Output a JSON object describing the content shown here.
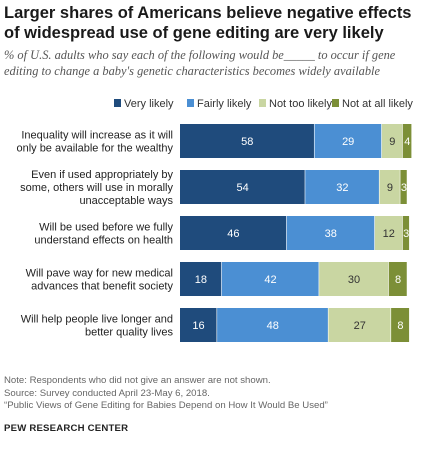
{
  "title": "Larger shares of Americans believe negative effects of widespread use of gene editing are very likely",
  "subtitle": "% of U.S. adults who say each of the following would be_____ to occur if gene editing to change a baby's genetic characteristics becomes widely available",
  "chart_data": {
    "type": "bar",
    "orientation": "horizontal",
    "stacked": true,
    "categories": [
      [
        "Inequality will increase as it will",
        "only be available  for the wealthy"
      ],
      [
        "Even if used appropriately by",
        "some, others will use in morally",
        "unacceptable ways"
      ],
      [
        "Will be used before we fully",
        "understand effects on health"
      ],
      [
        "Will pave way for new medical",
        "advances that benefit society"
      ],
      [
        "Will help people live longer and",
        "better quality lives"
      ]
    ],
    "series": [
      {
        "name": "Very likely",
        "color": "#1f4b7c",
        "label_color": "#ffffff",
        "values": [
          58,
          54,
          46,
          18,
          16
        ]
      },
      {
        "name": "Fairly likely",
        "color": "#4b8fd3",
        "label_color": "#ffffff",
        "values": [
          29,
          32,
          38,
          42,
          48
        ]
      },
      {
        "name": "Not too likely",
        "color": "#c9d6a2",
        "label_color": "#333333",
        "values": [
          9,
          9,
          12,
          30,
          27
        ]
      },
      {
        "name": "Not at all likely",
        "color": "#7c8f37",
        "label_color": "#ffffff",
        "values": [
          4,
          3,
          3,
          8,
          8
        ]
      }
    ],
    "xlim": [
      0,
      100
    ],
    "legend_position": "top-right",
    "grid": false
  },
  "note": "Note: Respondents who did not give an answer are not shown.",
  "source": "Source: Survey conducted April 23-May 6, 2018.",
  "report": "“Public Views of Gene Editing for Babies Depend on How It Would Be Used”",
  "organization": "PEW RESEARCH CENTER"
}
